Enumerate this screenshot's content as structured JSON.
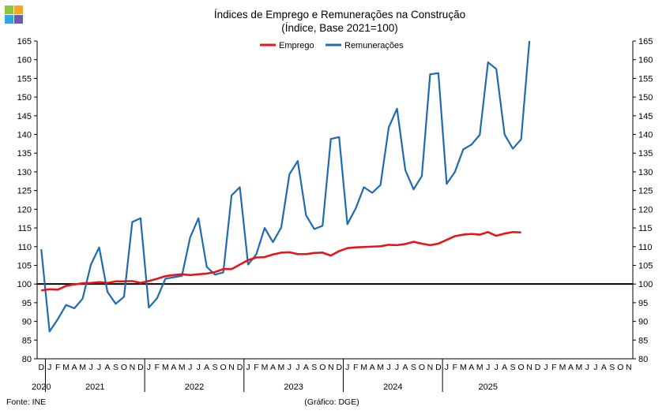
{
  "chart_data": {
    "type": "line",
    "title": "Índices de Emprego e Remunerações na Construção",
    "subtitle": "(Índice, Base 2021=100)",
    "source": "Fonte: INE",
    "credit": "(Gráfico: DGE)",
    "ylim": [
      80,
      165
    ],
    "ytick_step": 5,
    "reference_line": 100,
    "legend_position": "top-center",
    "month_labels": [
      "D",
      "J",
      "F",
      "M",
      "A",
      "M",
      "J",
      "J",
      "A",
      "S",
      "O",
      "N",
      "D",
      "J",
      "F",
      "M",
      "A",
      "M",
      "J",
      "J",
      "A",
      "S",
      "O",
      "N",
      "D",
      "J",
      "F",
      "M",
      "A",
      "M",
      "J",
      "J",
      "A",
      "S",
      "O",
      "N",
      "D",
      "J",
      "F",
      "M",
      "A",
      "M",
      "J",
      "J",
      "A",
      "S",
      "O",
      "N",
      "D",
      "J",
      "F",
      "M",
      "A",
      "M",
      "J",
      "J",
      "A",
      "S",
      "O",
      "N",
      "D",
      "J",
      "F",
      "M",
      "A",
      "M",
      "J",
      "J",
      "A",
      "S",
      "O",
      "N"
    ],
    "years": [
      {
        "label": "2020",
        "start": 0,
        "end": 0
      },
      {
        "label": "2021",
        "start": 1,
        "end": 12
      },
      {
        "label": "2022",
        "start": 13,
        "end": 24
      },
      {
        "label": "2023",
        "start": 25,
        "end": 36
      },
      {
        "label": "2024",
        "start": 37,
        "end": 48
      },
      {
        "label": "2025",
        "start": 49,
        "end": 59
      }
    ],
    "series": [
      {
        "name": "Emprego",
        "color": "#e8141b",
        "values": [
          98.3,
          98.6,
          98.5,
          99.5,
          99.9,
          100.2,
          100.3,
          100.5,
          100.3,
          100.7,
          100.7,
          100.8,
          100.3,
          100.8,
          101.4,
          102.1,
          102.4,
          102.6,
          102.4,
          102.6,
          102.8,
          103.2,
          104.0,
          104.0,
          105.2,
          106.4,
          107.1,
          107.2,
          107.9,
          108.4,
          108.5,
          108.0,
          108.0,
          108.3,
          108.4,
          107.6,
          108.8,
          109.6,
          109.8,
          109.9,
          110.0,
          110.1,
          110.5,
          110.4,
          110.7,
          111.3,
          110.8,
          110.4,
          110.8,
          111.8,
          112.8,
          113.2,
          113.4,
          113.2,
          113.9,
          112.9,
          113.5,
          113.9,
          113.8
        ]
      },
      {
        "name": "Remunerações",
        "color": "#1f6bb0",
        "values": [
          109.3,
          87.3,
          90.6,
          94.4,
          93.5,
          96.1,
          105.2,
          109.8,
          97.9,
          94.7,
          96.6,
          116.6,
          117.6,
          93.7,
          96.2,
          101.4,
          101.8,
          102.2,
          112.5,
          117.6,
          104.6,
          102.5,
          103.1,
          123.7,
          125.9,
          105.2,
          108.0,
          115.0,
          111.2,
          115.1,
          129.4,
          132.9,
          118.4,
          114.7,
          115.6,
          138.8,
          139.3,
          116.0,
          120.2,
          125.9,
          124.4,
          126.5,
          141.9,
          146.9,
          130.5,
          125.3,
          128.9,
          156.1,
          156.4,
          126.8,
          130.0,
          136.0,
          137.3,
          139.9,
          159.3,
          157.5,
          140.0,
          136.2,
          138.7,
          165.0
        ]
      }
    ]
  }
}
